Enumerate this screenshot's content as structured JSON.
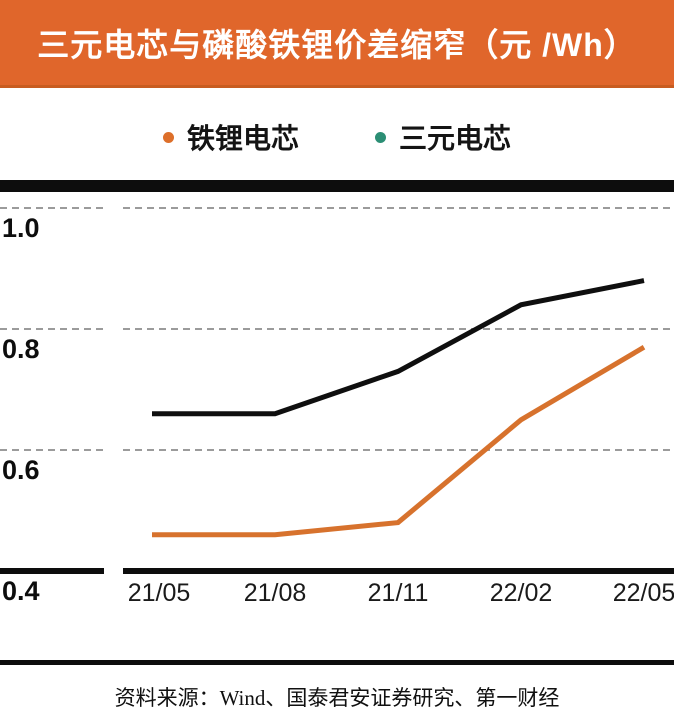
{
  "header": {
    "title": "三元电芯与磷酸铁锂价差缩窄（元 /Wh）",
    "background": "#e0662b",
    "border_color": "#c85c20",
    "text_color": "#ffffff"
  },
  "legend": {
    "items": [
      {
        "label": "铁锂电芯",
        "dot_color": "#dd6f2a"
      },
      {
        "label": "三元电芯",
        "dot_color": "#2b8e74"
      }
    ]
  },
  "chart_data": {
    "type": "line",
    "title": "三元电芯与磷酸铁锂价差缩窄（元/Wh）",
    "categories": [
      "21/05",
      "21/08",
      "21/11",
      "22/02",
      "22/05"
    ],
    "series": [
      {
        "name": "铁锂电芯",
        "color": "#d7722d",
        "values": [
          0.46,
          0.46,
          0.48,
          0.65,
          0.77
        ]
      },
      {
        "name": "三元电芯",
        "color": "#0f0f0f",
        "values": [
          0.66,
          0.66,
          0.73,
          0.84,
          0.88
        ]
      }
    ],
    "xlabel": "",
    "ylabel": "",
    "ylim": [
      0.4,
      1.0
    ],
    "yticks": [
      "1.0",
      "0.8",
      "0.6",
      "0.4"
    ],
    "grid": "horizontal-dashed",
    "legend_position": "top"
  },
  "style": {
    "gridline_color": "#9b9b9b",
    "axis_color": "#0d0d0d",
    "top_bar_color": "#0d0d0d"
  },
  "source": {
    "text": "资料来源：Wind、国泰君安证券研究、第一财经"
  }
}
